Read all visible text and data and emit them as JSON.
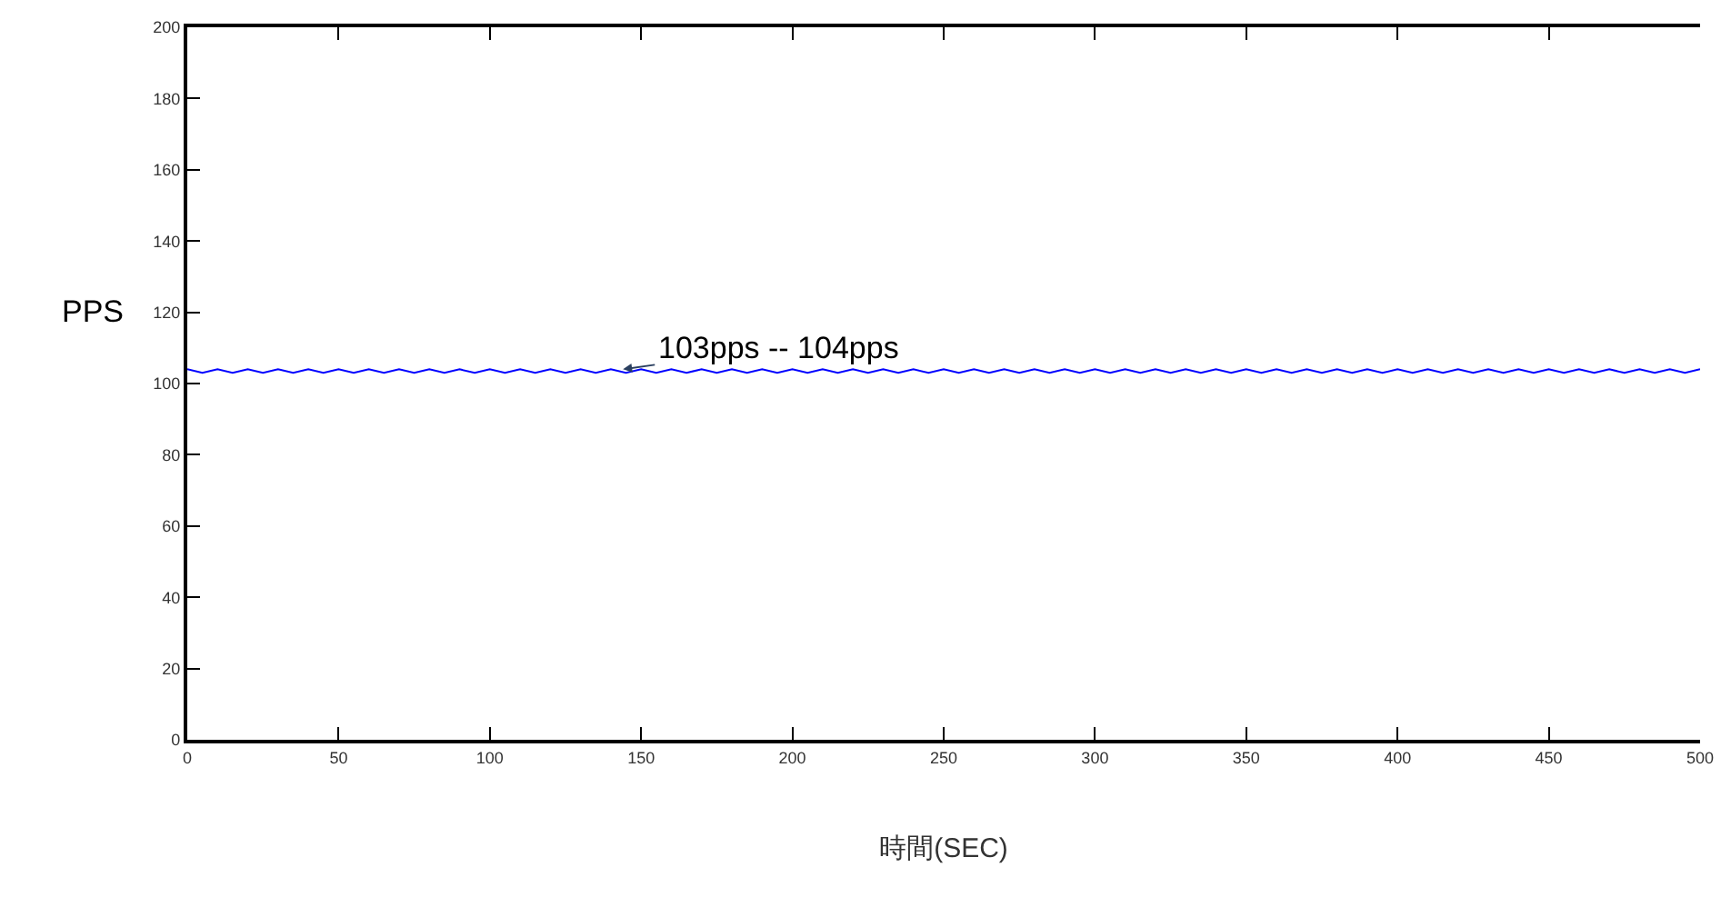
{
  "chart_data": {
    "type": "line",
    "xlabel": "時間(SEC)",
    "ylabel": "PPS",
    "x": [
      0,
      5,
      10,
      15,
      20,
      25,
      30,
      35,
      40,
      45,
      50,
      55,
      60,
      65,
      70,
      75,
      80,
      85,
      90,
      95,
      100,
      105,
      110,
      115,
      120,
      125,
      130,
      135,
      140,
      145,
      150,
      155,
      160,
      165,
      170,
      175,
      180,
      185,
      190,
      195,
      200,
      205,
      210,
      215,
      220,
      225,
      230,
      235,
      240,
      245,
      250,
      255,
      260,
      265,
      270,
      275,
      280,
      285,
      290,
      295,
      300,
      305,
      310,
      315,
      320,
      325,
      330,
      335,
      340,
      345,
      350,
      355,
      360,
      365,
      370,
      375,
      380,
      385,
      390,
      395,
      400,
      405,
      410,
      415,
      420,
      425,
      430,
      435,
      440,
      445,
      450,
      455,
      460,
      465,
      470,
      475,
      480,
      485,
      490,
      495,
      500
    ],
    "series": [
      {
        "color": "#0000ff",
        "values": [
          104,
          103,
          104,
          103,
          104,
          103,
          104,
          103,
          104,
          103,
          104,
          103,
          104,
          103,
          104,
          103,
          104,
          103,
          104,
          103,
          104,
          103,
          104,
          103,
          104,
          103,
          104,
          103,
          104,
          103,
          104,
          103,
          104,
          103,
          104,
          103,
          104,
          103,
          104,
          103,
          104,
          103,
          104,
          103,
          104,
          103,
          104,
          103,
          104,
          103,
          104,
          103,
          104,
          103,
          104,
          103,
          104,
          103,
          104,
          103,
          104,
          103,
          104,
          103,
          104,
          103,
          104,
          103,
          104,
          103,
          104,
          103,
          104,
          103,
          104,
          103,
          104,
          103,
          104,
          103,
          104,
          103,
          104,
          103,
          104,
          103,
          104,
          103,
          104,
          103,
          104,
          103,
          104,
          103,
          104,
          103,
          104,
          103,
          104,
          103,
          104
        ]
      }
    ],
    "annotations": [
      {
        "text": "103pps -- 104pps",
        "x": 144,
        "y": 104
      }
    ],
    "xlim": [
      0,
      500
    ],
    "xticks": [
      0,
      50,
      100,
      150,
      200,
      250,
      300,
      350,
      400,
      450,
      500
    ],
    "ylim": [
      0,
      200
    ],
    "yticks": [
      0,
      20,
      40,
      60,
      80,
      100,
      120,
      140,
      160,
      180,
      200
    ],
    "marker": "none",
    "line_style": "solid"
  }
}
